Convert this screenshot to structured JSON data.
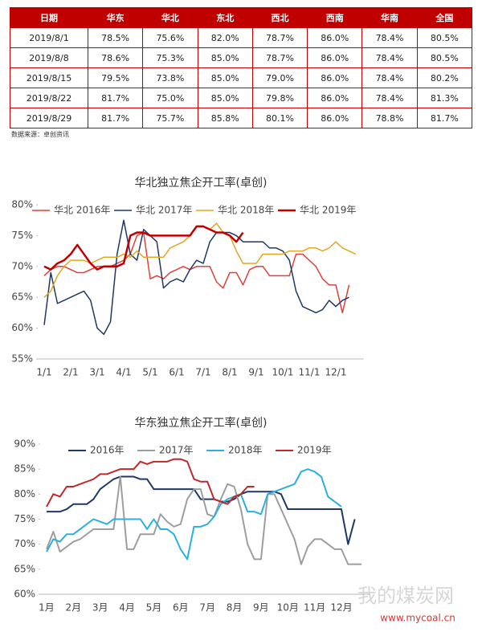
{
  "table": {
    "header": [
      "日期",
      "华东",
      "华北",
      "东北",
      "西北",
      "西南",
      "华南",
      "全国"
    ],
    "rows": [
      [
        "2019/8/1",
        "78.5%",
        "75.6%",
        "82.0%",
        "78.7%",
        "86.0%",
        "78.4%",
        "80.5%"
      ],
      [
        "2019/8/8",
        "78.6%",
        "75.3%",
        "85.0%",
        "78.7%",
        "86.0%",
        "78.4%",
        "80.5%"
      ],
      [
        "2019/8/15",
        "79.5%",
        "73.8%",
        "85.0%",
        "79.0%",
        "86.0%",
        "78.4%",
        "80.2%"
      ],
      [
        "2019/8/22",
        "81.7%",
        "75.0%",
        "85.0%",
        "79.8%",
        "86.0%",
        "78.4%",
        "81.3%"
      ],
      [
        "2019/8/29",
        "81.7%",
        "75.7%",
        "85.8%",
        "80.1%",
        "86.0%",
        "78.8%",
        "81.7%"
      ]
    ]
  },
  "source": "数据来源：卓创资讯",
  "watermark": {
    "name": "我的煤炭网",
    "url": "www.mycoal.cn"
  },
  "chart_data": [
    {
      "type": "line",
      "title": "华北独立焦企开工率(卓创)",
      "categories": [
        "1/1",
        null,
        null,
        null,
        "2/1",
        null,
        null,
        null,
        "3/1",
        null,
        null,
        null,
        "4/1",
        null,
        null,
        null,
        "5/1",
        null,
        null,
        null,
        "6/1",
        null,
        null,
        null,
        "7/1",
        null,
        null,
        null,
        "8/1",
        null,
        null,
        null,
        "9/1",
        null,
        null,
        null,
        "10/1",
        null,
        null,
        null,
        "11/1",
        null,
        null,
        null,
        "12/1",
        null,
        null,
        null
      ],
      "ylim": [
        55,
        80
      ],
      "yticks": [
        {
          "value": 55,
          "label": "55%"
        },
        {
          "value": 60,
          "label": "60%"
        },
        {
          "value": 65,
          "label": "65%"
        },
        {
          "value": 70,
          "label": "70%"
        },
        {
          "value": 75,
          "label": "75%"
        },
        {
          "value": 80,
          "label": "80%"
        }
      ],
      "grid": false,
      "legend": "top",
      "series": [
        {
          "name": "华北 2016年",
          "color": "#e0403a",
          "width": 1.5,
          "values": [
            68.5,
            69.5,
            70,
            70,
            69.5,
            69,
            69,
            69.5,
            70,
            70,
            70,
            70.5,
            71,
            72,
            75,
            75.5,
            68,
            68.5,
            68,
            69,
            69.5,
            70,
            69.5,
            70,
            70,
            70,
            67.5,
            66.5,
            69,
            69,
            67,
            69.5,
            70,
            70,
            68.5,
            68.5,
            68.5,
            68.5,
            72,
            72,
            71,
            70,
            68,
            67,
            67,
            62.5,
            67,
            null
          ]
        },
        {
          "name": "华北 2017年",
          "color": "#1f3864",
          "width": 1.5,
          "values": [
            60.5,
            69,
            64,
            64.5,
            65,
            65.5,
            66,
            64.5,
            60,
            59,
            61,
            72,
            77.5,
            72,
            71,
            76,
            75,
            74,
            66.5,
            67.5,
            68,
            67.5,
            69.5,
            71,
            70.5,
            74,
            75.5,
            75.5,
            75.5,
            75,
            74,
            74,
            74,
            74,
            73,
            73,
            72.5,
            71,
            66,
            63.5,
            63,
            62.5,
            63,
            64.5,
            63.5,
            64.5,
            65,
            null
          ]
        },
        {
          "name": "华北 2018年",
          "color": "#e0a820",
          "width": 1.5,
          "values": [
            65,
            66,
            68.5,
            70,
            71,
            71,
            71,
            70.5,
            71,
            71.5,
            71.5,
            71.5,
            72,
            71.5,
            72.5,
            71.5,
            71.5,
            71.5,
            71.5,
            73,
            73.5,
            74,
            75,
            76.5,
            76.5,
            76,
            77,
            75.5,
            75,
            72.5,
            70.5,
            70.5,
            70.5,
            72,
            72,
            72,
            72,
            72.5,
            72.5,
            72.5,
            73,
            73,
            72.5,
            73,
            74,
            73,
            72.5,
            72
          ]
        },
        {
          "name": "华北 2019年",
          "color": "#c00000",
          "width": 2.5,
          "values": [
            70,
            69.5,
            70.5,
            71,
            72,
            73.5,
            72,
            70.5,
            69.5,
            70,
            70,
            70,
            70.5,
            75,
            75.5,
            75.5,
            75,
            75,
            75,
            75,
            75,
            75,
            75,
            76.5,
            76.5,
            76,
            75.5,
            75.5,
            75,
            74,
            75.5,
            null,
            null,
            null,
            null,
            null,
            null,
            null,
            null,
            null,
            null,
            null,
            null,
            null,
            null,
            null,
            null,
            null
          ]
        }
      ]
    },
    {
      "type": "line",
      "title": "华东独立焦企开工率(卓创)",
      "categories": [
        "1月",
        null,
        null,
        null,
        "2月",
        null,
        null,
        null,
        "3月",
        null,
        null,
        null,
        "4月",
        null,
        null,
        null,
        "5月",
        null,
        null,
        null,
        "6月",
        null,
        null,
        null,
        "7月",
        null,
        null,
        null,
        "8月",
        null,
        null,
        null,
        "9月",
        null,
        null,
        null,
        "10月",
        null,
        null,
        null,
        "11月",
        null,
        null,
        null,
        "12月",
        null,
        null,
        null
      ],
      "ylim": [
        60,
        90
      ],
      "yticks": [
        {
          "value": 60,
          "label": "60%"
        },
        {
          "value": 65,
          "label": "65%"
        },
        {
          "value": 70,
          "label": "70%"
        },
        {
          "value": 75,
          "label": "75%"
        },
        {
          "value": 80,
          "label": "80%"
        },
        {
          "value": 85,
          "label": "85%"
        },
        {
          "value": 90,
          "label": "90%"
        }
      ],
      "grid": false,
      "legend": "top",
      "series": [
        {
          "name": "2016年",
          "color": "#1f3864",
          "width": 2,
          "values": [
            76.5,
            76.5,
            76.5,
            77,
            78,
            78,
            78,
            79,
            81,
            82,
            83,
            83.5,
            83.5,
            83.5,
            83,
            83,
            81,
            81,
            81,
            81,
            81,
            81,
            81,
            79,
            79,
            79,
            78.5,
            78.5,
            79,
            80,
            80.5,
            80.5,
            80.5,
            80.5,
            80.5,
            80,
            77,
            77,
            77,
            77,
            77,
            77,
            77,
            77,
            77,
            70,
            75,
            null
          ]
        },
        {
          "name": "2017年",
          "color": "#9e9e9e",
          "width": 2,
          "values": [
            69,
            72.5,
            68.5,
            69.5,
            70.5,
            71,
            72,
            73,
            73,
            73,
            73,
            83.5,
            69,
            69,
            72,
            72,
            72,
            76,
            74.5,
            73.5,
            74,
            79,
            81,
            81,
            76,
            75.5,
            79,
            82,
            81.5,
            77,
            70,
            67,
            67,
            80,
            80,
            77,
            74,
            71,
            66,
            69.5,
            71,
            71,
            70,
            69,
            69,
            66,
            66,
            66
          ]
        },
        {
          "name": "2018年",
          "color": "#2ab0e0",
          "width": 2,
          "values": [
            68.5,
            71,
            70.5,
            72,
            72,
            73,
            74,
            75,
            74.5,
            74,
            75,
            75,
            75,
            75,
            75,
            73,
            75,
            73,
            73,
            72,
            69,
            67,
            73.5,
            73.5,
            74,
            75.5,
            78,
            79,
            79.5,
            80,
            76.5,
            76.5,
            76,
            80,
            80.5,
            81,
            81.5,
            82,
            84.5,
            85,
            84.5,
            83.5,
            79.5,
            78.5,
            77.5,
            null,
            null,
            null
          ]
        },
        {
          "name": "2019年",
          "color": "#c0282a",
          "width": 2,
          "values": [
            77.5,
            80,
            79.5,
            81.5,
            81.5,
            82,
            82.5,
            83,
            84,
            84,
            84.5,
            85,
            85,
            85,
            86.5,
            86,
            86.5,
            86.5,
            86.5,
            87,
            87,
            86.5,
            83,
            82.5,
            82.5,
            79,
            78.5,
            78,
            79.5,
            80,
            81.5,
            81.5,
            null,
            null,
            null,
            null,
            null,
            null,
            null,
            null,
            null,
            null,
            null,
            null,
            null,
            null,
            null,
            null
          ]
        }
      ]
    }
  ]
}
